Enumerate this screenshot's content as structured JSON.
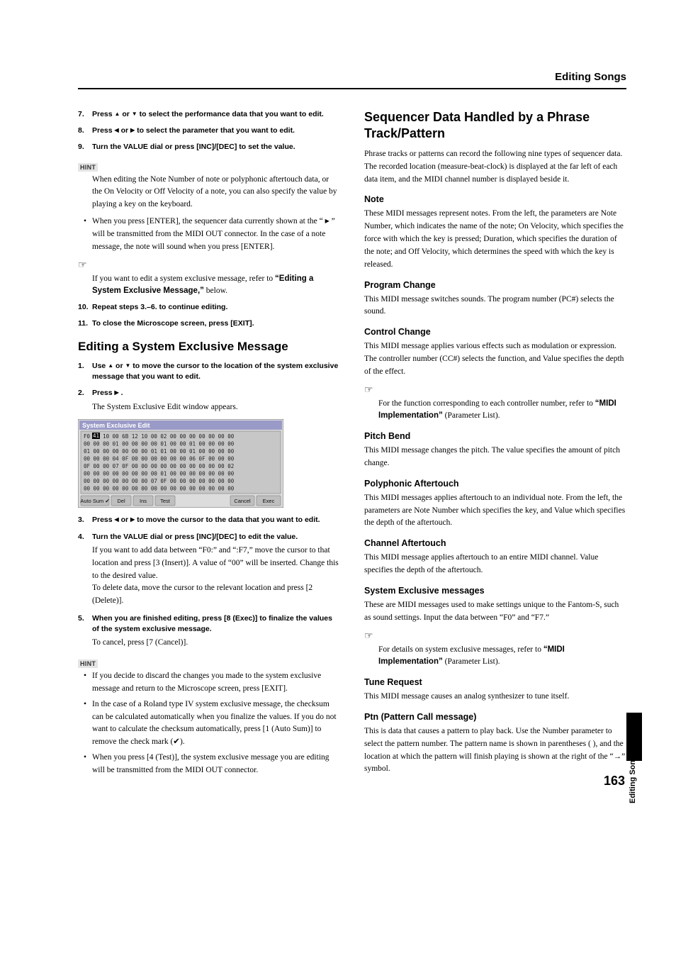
{
  "header": {
    "title": "Editing Songs"
  },
  "left": {
    "steps_a": [
      {
        "num": "7.",
        "html": "Press <span class='arrow tri-up'></span> or <span class='arrow tri-down'></span> to select the performance data that you want to edit."
      },
      {
        "num": "8.",
        "html": "Press <span class='arrow tri-left'></span> or <span class='arrow tri-right'></span> to select the parameter that you want to edit."
      },
      {
        "num": "9.",
        "html": "Turn the VALUE dial or press [INC]/[DEC] to set the value."
      }
    ],
    "hint1_label": "HINT",
    "hint1_body": "When editing the Note Number of note or polyphonic aftertouch data, or the On Velocity or Off Velocity of a note, you can also specify the value by playing a key on the keyboard.",
    "hint1_bullet": "When you press [ENTER], the sequencer data currently shown at the “ <span class='arrow tri-right'></span> ” will be transmitted from the MIDI OUT connector. In the case of a note message, the note will sound when you press [ENTER].",
    "pointer1": "☞",
    "pointer1_body": "If you want to edit a system exclusive message, refer to <span class='sans-bold'>“Editing a System Exclusive Message,”</span> below.",
    "steps_b": [
      {
        "num": "10.",
        "html": "Repeat steps 3.–6. to continue editing."
      },
      {
        "num": "11.",
        "html": "To close the Microscope screen, press [EXIT]."
      }
    ],
    "h2": "Editing a System Exclusive Message",
    "steps_c": [
      {
        "num": "1.",
        "html": "Use <span class='arrow tri-up'></span> or <span class='arrow tri-down'></span> to move the cursor to the location of the system exclusive message that you want to edit."
      },
      {
        "num": "2.",
        "html": "Press <span class='arrow tri-right'></span> .",
        "after": "The System Exclusive Edit window appears."
      }
    ],
    "sysex_fig": {
      "title": "System Exclusive Edit",
      "hex_rows": [
        "F0 41 10 00  6B 12 10 00  02 00 00 00  00 00 00 00",
        "00 00 00 01  00 00 00 00  01 00 00 01  00 00 00 00",
        "01 00 00 00  00 00 00 01  01 00 00 01  00 00 00 00",
        "00 00 00 04  0F 00 00 00  00 00 00 06  0F 00 00 00",
        "0F 00 00 07  0F 00 00 00  00 00 00 00  00 00 00 02",
        "00 00 00 00  00 00 00 00  01 00 00 00  00 00 00 00",
        "00 00 00 00  00 00 00 07  0F 00 00 00  00 00 00 00",
        "00 00 00 00  00 00 00 00  00 00 00 00  00 00 00 00"
      ],
      "buttons": [
        "Auto Sum ✔",
        "Del",
        "Ins",
        "Test",
        "Cancel",
        "Exec"
      ],
      "colors": {
        "bg": "#dcdcdc",
        "header": "#9a9ac8",
        "cell": "#c7c7c7",
        "btn": "#bfbfbf",
        "border": "#6f6f6f"
      }
    },
    "steps_d": [
      {
        "num": "3.",
        "html": "Press <span class='arrow tri-left'></span> or <span class='arrow tri-right'></span> to move the cursor to the data that you want to edit."
      },
      {
        "num": "4.",
        "html": "Turn the VALUE dial or press [INC]/[DEC] to edit the value.",
        "after": "If you want to add data between “F0:” and “:F7,” move the cursor to that location and press [3 (Insert)]. A value of “00” will be inserted. Change this to the desired value.\nTo delete data, move the cursor to the relevant location and press [2 (Delete)]."
      },
      {
        "num": "5.",
        "html": "When you are finished editing, press [8 (Exec)] to finalize the values of the system exclusive message.",
        "after": "To cancel, press [7 (Cancel)]."
      }
    ],
    "hint2_label": "HINT",
    "hint2_bullets": [
      "If you decide to discard the changes you made to the system exclusive message and return to the Microscope screen, press [EXIT].",
      "In the case of a Roland type IV system exclusive message, the checksum can be calculated automatically when you finalize the values. If you do not want to calculate the checksum automatically, press [1 (Auto Sum)] to remove the check mark (✔).",
      "When you press [4 (Test)], the system exclusive message you are editing will be transmitted from the MIDI OUT connector."
    ]
  },
  "right": {
    "h2": "Sequencer Data Handled by a Phrase Track/Pattern",
    "intro": "Phrase tracks or patterns can record the following nine types of sequencer data. The recorded location (measure-beat-clock) is displayed at the far left of each data item, and the MIDI channel number is displayed beside it.",
    "sections": [
      {
        "title": "Note",
        "body": "These MIDI messages represent notes. From the left, the parameters are Note Number, which indicates the name of the note; On Velocity, which specifies the force with which the key is pressed; Duration, which specifies the duration of the note; and Off Velocity, which determines the speed with which the key is released."
      },
      {
        "title": "Program Change",
        "body": "This MIDI message switches sounds. The program number (PC#) selects the sound."
      },
      {
        "title": "Control Change",
        "body": "This MIDI message applies various effects such as modulation or expression. The controller number (CC#) selects the function, and Value specifies the depth of the effect.",
        "pointer": "☞",
        "pointer_body": "For the function corresponding to each controller number, refer to <span class='sans-bold'>“MIDI Implementation”</span> (Parameter List)."
      },
      {
        "title": "Pitch Bend",
        "body": "This MIDI message changes the pitch. The value specifies the amount of pitch change."
      },
      {
        "title": "Polyphonic Aftertouch",
        "body": "This MIDI messages applies aftertouch to an individual note. From the left, the parameters are Note Number which specifies the key, and Value which specifies the depth of the aftertouch."
      },
      {
        "title": "Channel Aftertouch",
        "body": "This MIDI message applies aftertouch to an entire MIDI channel. Value specifies the depth of the aftertouch."
      },
      {
        "title": "System Exclusive messages",
        "body": "These are MIDI messages used to make settings unique to the Fantom-S, such as sound settings. Input the data between “F0” and “F7.”",
        "pointer": "☞",
        "pointer_body": "For details on system exclusive messages, refer to <span class='sans-bold'>“MIDI Implementation”</span> (Parameter List)."
      },
      {
        "title": "Tune Request",
        "body": "This MIDI message causes an analog synthesizer to tune itself."
      },
      {
        "title": "Ptn (Pattern Call message)",
        "body": "This is data that causes a pattern to play back. Use the Number parameter to select the pattern number. The pattern name is shown in parentheses ( ), and the location at which the pattern will finish playing is shown at the right of the “→” symbol."
      }
    ]
  },
  "side_tab": "Editing Songs",
  "page_number": "163"
}
